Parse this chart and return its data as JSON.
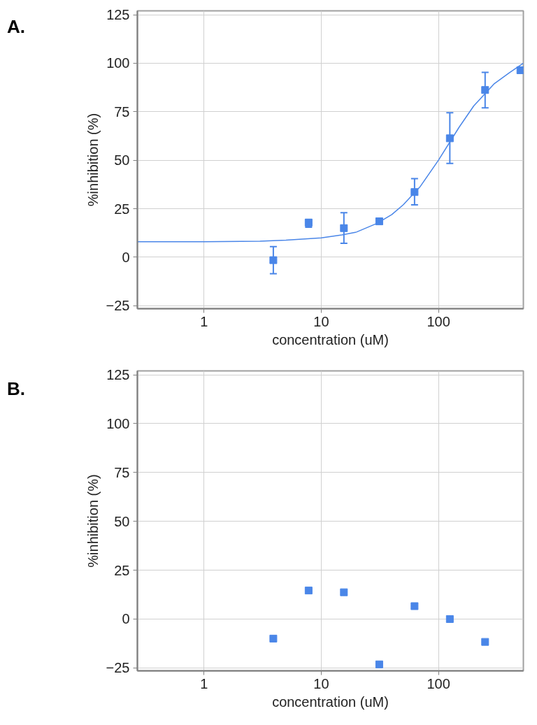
{
  "chart_data": [
    {
      "type": "scatter",
      "annotations": [
        "A."
      ],
      "xlabel": "concentration (uM)",
      "ylabel": "%inhibition (%)",
      "log": "x",
      "grid": true,
      "marker": "square",
      "xlim": [
        0.27,
        530
      ],
      "xticks": [
        1,
        10,
        100
      ],
      "ylim": [
        -26.5,
        127
      ],
      "yticks": [
        -25,
        0,
        25,
        50,
        75,
        100,
        125
      ],
      "series": [
        {
          "color": "#4a86e8",
          "x": [
            3.9,
            7.8,
            15.6,
            31.25,
            62.5,
            125,
            250,
            500
          ],
          "values": [
            -1.5,
            17.8,
            15,
            18.5,
            33.6,
            61.3,
            86.2,
            96.4
          ],
          "errors": [
            [
              -8.5,
              5.5
            ],
            [
              15.5,
              19.5
            ],
            [
              7.2,
              23
            ],
            [
              17,
              20
            ],
            [
              27,
              40.5
            ],
            [
              48.4,
              74.5
            ],
            [
              77,
              95.3
            ],
            [
              95,
              98
            ]
          ]
        },
        {
          "type": "line",
          "marker": "none",
          "color": "#4a86e8",
          "x": [
            0.27,
            1,
            3,
            5,
            10,
            15,
            20,
            30,
            40,
            50,
            70,
            100,
            150,
            200,
            300,
            400,
            530
          ],
          "values": [
            8,
            8,
            8.3,
            8.8,
            10,
            11.5,
            13,
            17.5,
            22,
            27,
            36.5,
            50,
            67,
            78,
            89.5,
            95,
            100
          ]
        }
      ]
    },
    {
      "type": "scatter",
      "annotations": [
        "B."
      ],
      "xlabel": "concentration (uM)",
      "ylabel": "%inhibition (%)",
      "log": "x",
      "grid": true,
      "marker": "square",
      "xlim": [
        0.27,
        530
      ],
      "xticks": [
        1,
        10,
        100
      ],
      "ylim": [
        -26.5,
        127
      ],
      "yticks": [
        -25,
        0,
        25,
        50,
        75,
        100,
        125
      ],
      "series": [
        {
          "color": "#4a86e8",
          "x": [
            3.9,
            7.8,
            15.6,
            31.25,
            62.5,
            125,
            250
          ],
          "values": [
            -10,
            14.6,
            13.7,
            -23.2,
            6.6,
            0,
            -11.7
          ]
        }
      ]
    }
  ]
}
